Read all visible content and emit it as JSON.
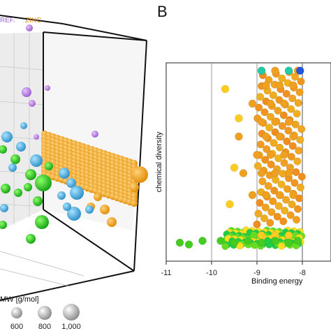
{
  "panel_a": {
    "legend": {
      "ref": "REF.",
      "zinc": "ZINC"
    },
    "mw_label": "MW [g/mol]",
    "mw_sizes": [
      "600",
      "800",
      "1,000"
    ],
    "colors": {
      "ref": "#b070d8",
      "zinc": "#f0a020",
      "green": "#22cc22",
      "blue": "#44aadd"
    }
  },
  "chart_data": {
    "type": "scatter",
    "panel_label": "B",
    "xlabel": "Binding energy",
    "ylabel": "chemical diversity",
    "xlim": [
      -11,
      -8
    ],
    "xticks": [
      "-11",
      "-10",
      "-9",
      "-8"
    ],
    "vlines": [
      -10,
      -9
    ],
    "grid": false,
    "series": [
      {
        "color": "#f0a020",
        "x": [
          -8.9,
          -8.6,
          -8.3,
          -8.1,
          -8.8,
          -8.5,
          -8.2,
          -9.1,
          -8.7,
          -8.4,
          -8.9,
          -8.6,
          -8.3,
          -9.4,
          -8.8,
          -8.5,
          -8.2,
          -9.0,
          -8.7,
          -8.4,
          -9.3,
          -8.9,
          -8.6,
          -8.3,
          -9.1,
          -8.8,
          -8.5,
          -8.2
        ],
        "y": [
          0.98,
          0.98,
          0.98,
          0.98,
          0.9,
          0.9,
          0.9,
          0.8,
          0.8,
          0.8,
          0.7,
          0.7,
          0.7,
          0.62,
          0.62,
          0.62,
          0.62,
          0.52,
          0.52,
          0.52,
          0.42,
          0.42,
          0.42,
          0.42,
          0.3,
          0.3,
          0.3,
          0.3
        ]
      },
      {
        "color": "#ffcc22",
        "x": [
          -9.7,
          -9.4,
          -9.5,
          -9.6,
          -8.9,
          -8.6,
          -8.3
        ],
        "y": [
          0.88,
          0.72,
          0.45,
          0.25,
          0.08,
          0.08,
          0.08
        ]
      },
      {
        "color": "#44cc22",
        "x": [
          -10.7,
          -10.5,
          -10.2,
          -9.8,
          -9.5,
          -9.2,
          -8.9,
          -8.6,
          -8.3,
          -8.1
        ],
        "y": [
          0.04,
          0.03,
          0.05,
          0.05,
          0.04,
          0.05,
          0.04,
          0.05,
          0.04,
          0.05
        ]
      },
      {
        "color": "#22ccaa",
        "x": [
          -8.9,
          -8.3
        ],
        "y": [
          0.98,
          0.98
        ]
      },
      {
        "color": "#2255dd",
        "x": [
          -8.05
        ],
        "y": [
          0.98
        ]
      }
    ]
  }
}
